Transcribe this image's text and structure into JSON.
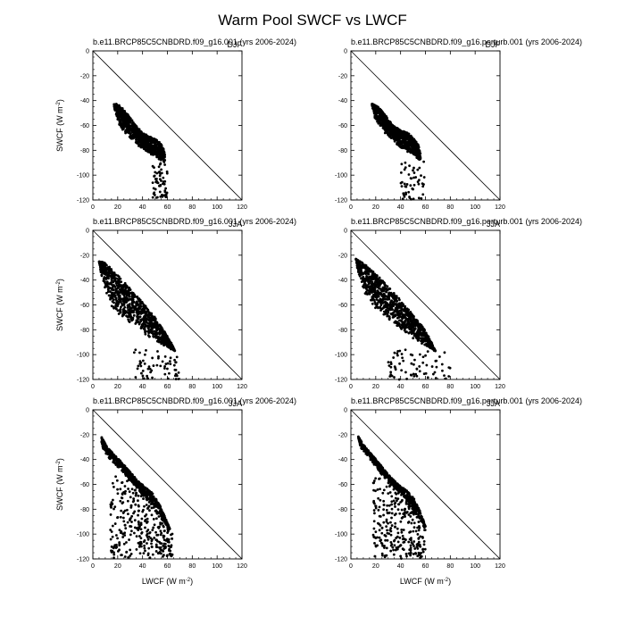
{
  "figure": {
    "title": "Warm Pool SWCF vs LWCF"
  },
  "axes": {
    "xlabel": "LWCF (W m",
    "ylabel": "SWCF (W m",
    "unit_exp": "-2",
    "xlim": [
      0,
      120
    ],
    "ylim": [
      -120,
      0
    ],
    "xticks": [
      0,
      20,
      40,
      60,
      80,
      100,
      120
    ],
    "yticks": [
      0,
      -20,
      -40,
      -60,
      -80,
      -100,
      -120
    ]
  },
  "chart_data": [
    {
      "type": "scatter",
      "title": "b.e11.BRCP85C5CNBDRD.f09_g16.001 (yrs 2006-2024)",
      "season": "DJF",
      "reference_line": "y = -x",
      "cloud": {
        "upper": [
          [
            17,
            -42
          ],
          [
            22,
            -44
          ],
          [
            28,
            -51
          ],
          [
            34,
            -59
          ],
          [
            40,
            -66
          ],
          [
            46,
            -69
          ],
          [
            52,
            -72
          ],
          [
            56,
            -76
          ],
          [
            58,
            -83
          ],
          [
            58,
            -90
          ]
        ],
        "lower": [
          [
            17,
            -44
          ],
          [
            18,
            -50
          ],
          [
            20,
            -56
          ],
          [
            22,
            -61
          ],
          [
            24,
            -64
          ],
          [
            28,
            -68
          ],
          [
            32,
            -72
          ],
          [
            36,
            -76
          ],
          [
            42,
            -80
          ],
          [
            48,
            -84
          ],
          [
            54,
            -88
          ],
          [
            58,
            -90
          ]
        ],
        "count": 900,
        "tail": [
          [
            48,
            -90
          ],
          [
            60,
            -122
          ],
          [
            60
          ]
        ]
      }
    },
    {
      "type": "scatter",
      "title": "b.e11.BRCP85C5CNBDRD.f09_g16.perturb.001 (yrs 2006-2024)",
      "season": "DJF",
      "reference_line": "y = -x",
      "cloud": {
        "upper": [
          [
            17,
            -42
          ],
          [
            22,
            -45
          ],
          [
            28,
            -52
          ],
          [
            34,
            -60
          ],
          [
            40,
            -64
          ],
          [
            46,
            -66
          ],
          [
            50,
            -70
          ],
          [
            54,
            -75
          ],
          [
            56,
            -82
          ],
          [
            56,
            -88
          ]
        ],
        "lower": [
          [
            17,
            -44
          ],
          [
            18,
            -50
          ],
          [
            20,
            -56
          ],
          [
            22,
            -60
          ],
          [
            25,
            -64
          ],
          [
            28,
            -67
          ],
          [
            32,
            -71
          ],
          [
            36,
            -75
          ],
          [
            42,
            -79
          ],
          [
            48,
            -83
          ],
          [
            54,
            -87
          ],
          [
            56,
            -88
          ]
        ],
        "count": 850,
        "tail": [
          [
            40,
            -88
          ],
          [
            60,
            -120
          ],
          [
            50
          ]
        ]
      }
    },
    {
      "type": "scatter",
      "title": "b.e11.BRCP85C5CNBDRD.f09_g16.001 (yrs 2006-2024)",
      "season": "JJA",
      "reference_line": "y = -x",
      "cloud": {
        "upper": [
          [
            5,
            -25
          ],
          [
            10,
            -26
          ],
          [
            20,
            -36
          ],
          [
            30,
            -47
          ],
          [
            40,
            -58
          ],
          [
            50,
            -70
          ],
          [
            56,
            -79
          ],
          [
            62,
            -88
          ],
          [
            66,
            -97
          ]
        ],
        "lower": [
          [
            5,
            -25
          ],
          [
            6,
            -32
          ],
          [
            8,
            -40
          ],
          [
            10,
            -47
          ],
          [
            12,
            -54
          ],
          [
            14,
            -60
          ],
          [
            18,
            -66
          ],
          [
            24,
            -70
          ],
          [
            32,
            -76
          ],
          [
            40,
            -82
          ],
          [
            48,
            -88
          ],
          [
            56,
            -93
          ],
          [
            66,
            -97
          ]
        ],
        "count": 1000,
        "tail": [
          [
            30,
            -96
          ],
          [
            70,
            -120
          ],
          [
            60
          ]
        ]
      }
    },
    {
      "type": "scatter",
      "title": "b.e11.BRCP85C5CNBDRD.f09_g16.perturb.001 (yrs 2006-2024)",
      "season": "JJA",
      "reference_line": "y = -x",
      "cloud": {
        "upper": [
          [
            4,
            -23
          ],
          [
            10,
            -26
          ],
          [
            20,
            -35
          ],
          [
            30,
            -45
          ],
          [
            40,
            -56
          ],
          [
            50,
            -68
          ],
          [
            58,
            -78
          ],
          [
            64,
            -88
          ],
          [
            68,
            -97
          ]
        ],
        "lower": [
          [
            4,
            -23
          ],
          [
            5,
            -30
          ],
          [
            7,
            -38
          ],
          [
            9,
            -46
          ],
          [
            12,
            -53
          ],
          [
            16,
            -60
          ],
          [
            22,
            -66
          ],
          [
            30,
            -72
          ],
          [
            38,
            -78
          ],
          [
            46,
            -84
          ],
          [
            54,
            -90
          ],
          [
            62,
            -94
          ],
          [
            68,
            -97
          ]
        ],
        "count": 1000,
        "tail": [
          [
            30,
            -96
          ],
          [
            80,
            -120
          ],
          [
            70
          ]
        ]
      }
    },
    {
      "type": "scatter",
      "title": "b.e11.BRCP85C5CNBDRD.f09_g16.001 (yrs 2006-2024)",
      "season": "JJA",
      "reference_line": "y = -x",
      "cloud": {
        "upper": [
          [
            7,
            -22
          ],
          [
            12,
            -30
          ],
          [
            18,
            -37
          ],
          [
            24,
            -43
          ],
          [
            30,
            -50
          ],
          [
            36,
            -57
          ],
          [
            42,
            -62
          ],
          [
            48,
            -67
          ],
          [
            54,
            -77
          ],
          [
            58,
            -86
          ],
          [
            62,
            -96
          ]
        ],
        "lower": [
          [
            7,
            -26
          ],
          [
            8,
            -32
          ],
          [
            12,
            -38
          ],
          [
            18,
            -44
          ],
          [
            24,
            -50
          ],
          [
            30,
            -57
          ],
          [
            36,
            -64
          ],
          [
            42,
            -71
          ],
          [
            48,
            -79
          ],
          [
            54,
            -87
          ],
          [
            62,
            -96
          ]
        ],
        "count": 650,
        "tail": [
          [
            14,
            -52
          ],
          [
            64,
            -120
          ],
          [
            300
          ]
        ]
      }
    },
    {
      "type": "scatter",
      "title": "b.e11.BRCP85C5CNBDRD.f09_g16.perturb.001 (yrs 2006-2024)",
      "season": "JJA",
      "reference_line": "y = -x",
      "cloud": {
        "upper": [
          [
            6,
            -21
          ],
          [
            10,
            -28
          ],
          [
            16,
            -35
          ],
          [
            22,
            -42
          ],
          [
            30,
            -52
          ],
          [
            38,
            -60
          ],
          [
            44,
            -64
          ],
          [
            50,
            -70
          ],
          [
            56,
            -82
          ],
          [
            60,
            -94
          ]
        ],
        "lower": [
          [
            6,
            -24
          ],
          [
            8,
            -31
          ],
          [
            14,
            -38
          ],
          [
            20,
            -46
          ],
          [
            28,
            -56
          ],
          [
            36,
            -64
          ],
          [
            44,
            -72
          ],
          [
            52,
            -84
          ],
          [
            60,
            -94
          ]
        ],
        "count": 600,
        "tail": [
          [
            18,
            -54
          ],
          [
            60,
            -120
          ],
          [
            260
          ]
        ]
      }
    }
  ]
}
